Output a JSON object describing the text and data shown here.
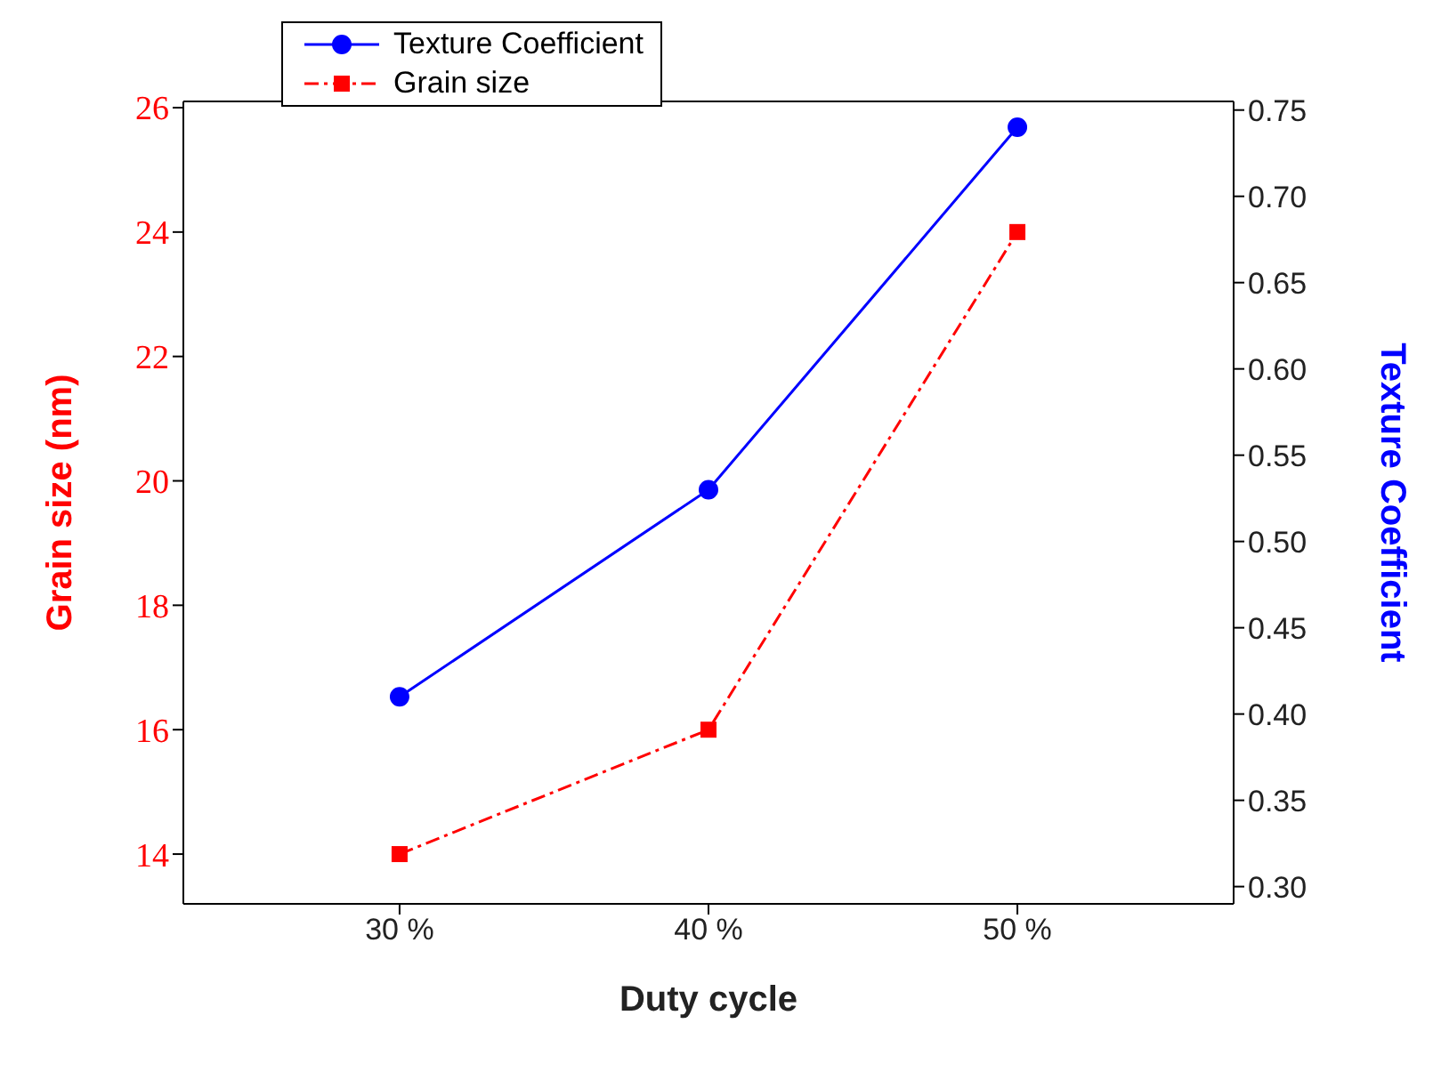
{
  "chart_data": {
    "type": "line",
    "xlabel": "Duty cycle",
    "ylabel": "Grain size (nm)",
    "y2label": "Texture Coefficient",
    "categories": [
      "30 %",
      "40 %",
      "50 %"
    ],
    "series": [
      {
        "name": "Texture Coefficient",
        "color": "#0000ff",
        "values": [
          0.41,
          0.53,
          0.74
        ],
        "axis": "y2",
        "marker": "circle",
        "line_style": "solid"
      },
      {
        "name": "Grain size",
        "color": "#ff0000",
        "values": [
          14,
          16,
          24
        ],
        "marker": "square",
        "line_style": "dashed"
      }
    ],
    "ylim": [
      13.2,
      26.1
    ],
    "yticks": [
      14,
      16,
      18,
      20,
      22,
      24,
      26
    ],
    "y2lim": [
      0.29,
      0.755
    ],
    "y2ticks": [
      {
        "value": 0.3,
        "label": "0.30"
      },
      0.35,
      {
        "value": 0.4,
        "label": "0.40"
      },
      0.45,
      {
        "value": 0.5,
        "label": "0.50"
      },
      0.55,
      {
        "value": 0.6,
        "label": "0.60"
      },
      0.65,
      {
        "value": 0.7,
        "label": "0.70"
      },
      0.75
    ],
    "legend": "top left",
    "grid": false
  }
}
